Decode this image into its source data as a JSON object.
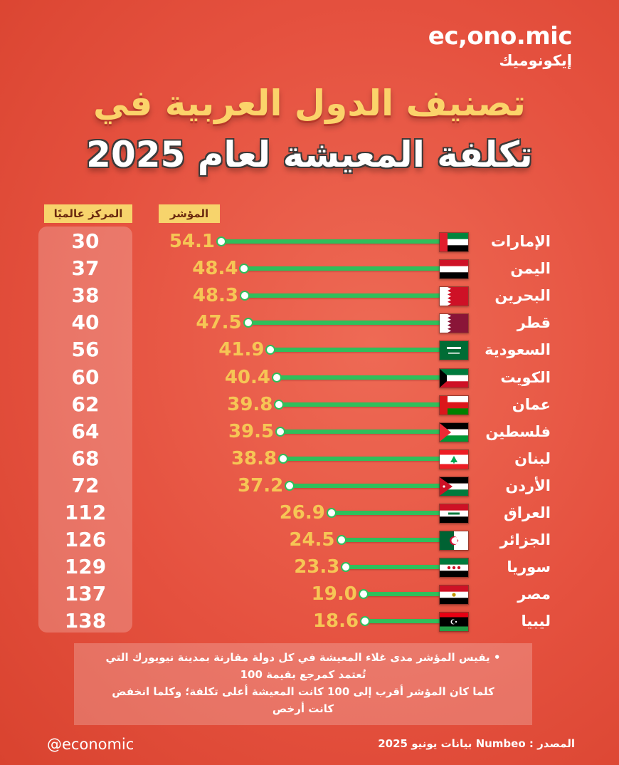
{
  "logo": {
    "latin": "ec,ono.mic",
    "arabic": "إيكونوميك"
  },
  "title_line1": "تصنيف الدول العربية في",
  "title_line2": "تكلفة المعيشة لعام 2025",
  "header_rank": "المركز عالميًا",
  "header_index": "المؤشر",
  "note_line1": "• يقيس المؤشر مدى غلاء المعيشة في كل دولة مقارنة بمدينة نيويورك التي",
  "note_line2": "تُعتمد كمرجع بقيمة 100",
  "note_line3": "كلما كان المؤشر أقرب إلى 100 كانت المعيشة أعلى تكلفة؛ وكلما انخفض",
  "note_line4": "كانت أرخص",
  "handle": "@economic",
  "source": "المصدر : Numbeo بيانات يونيو 2025",
  "colors": {
    "background": "#e8503f",
    "bar": "#2fbf5b",
    "value": "#f6c655",
    "title_accent": "#fbd36a",
    "header_bg": "#f7d46c"
  },
  "chart_data": {
    "type": "bar",
    "orientation": "horizontal",
    "categories": [
      "الإمارات",
      "اليمن",
      "البحرين",
      "قطر",
      "السعودية",
      "الكويت",
      "عمان",
      "فلسطين",
      "لبنان",
      "الأردن",
      "العراق",
      "الجزائر",
      "سوريا",
      "مصر",
      "ليبيا"
    ],
    "series": [
      {
        "name": "المؤشر",
        "values": [
          54.1,
          48.4,
          48.3,
          47.5,
          41.9,
          40.4,
          39.8,
          39.5,
          38.8,
          37.2,
          26.9,
          24.5,
          23.3,
          19.0,
          18.6
        ]
      }
    ],
    "value_labels": [
      "54.1",
      "48.4",
      "48.3",
      "47.5",
      "41.9",
      "40.4",
      "39.8",
      "39.5",
      "38.8",
      "37.2",
      "26.9",
      "24.5",
      "23.3",
      "19.0",
      "18.6"
    ],
    "global_rank": [
      "30",
      "37",
      "38",
      "40",
      "56",
      "60",
      "62",
      "64",
      "68",
      "72",
      "112",
      "126",
      "129",
      "137",
      "138"
    ],
    "flags": [
      "uae-flag-icon",
      "yemen-flag-icon",
      "bahrain-flag-icon",
      "qatar-flag-icon",
      "saudi-flag-icon",
      "kuwait-flag-icon",
      "oman-flag-icon",
      "palestine-flag-icon",
      "lebanon-flag-icon",
      "jordan-flag-icon",
      "iraq-flag-icon",
      "algeria-flag-icon",
      "syria-flag-icon",
      "egypt-flag-icon",
      "libya-flag-icon"
    ],
    "title": "تصنيف الدول العربية في تكلفة المعيشة لعام 2025",
    "grid": false
  }
}
